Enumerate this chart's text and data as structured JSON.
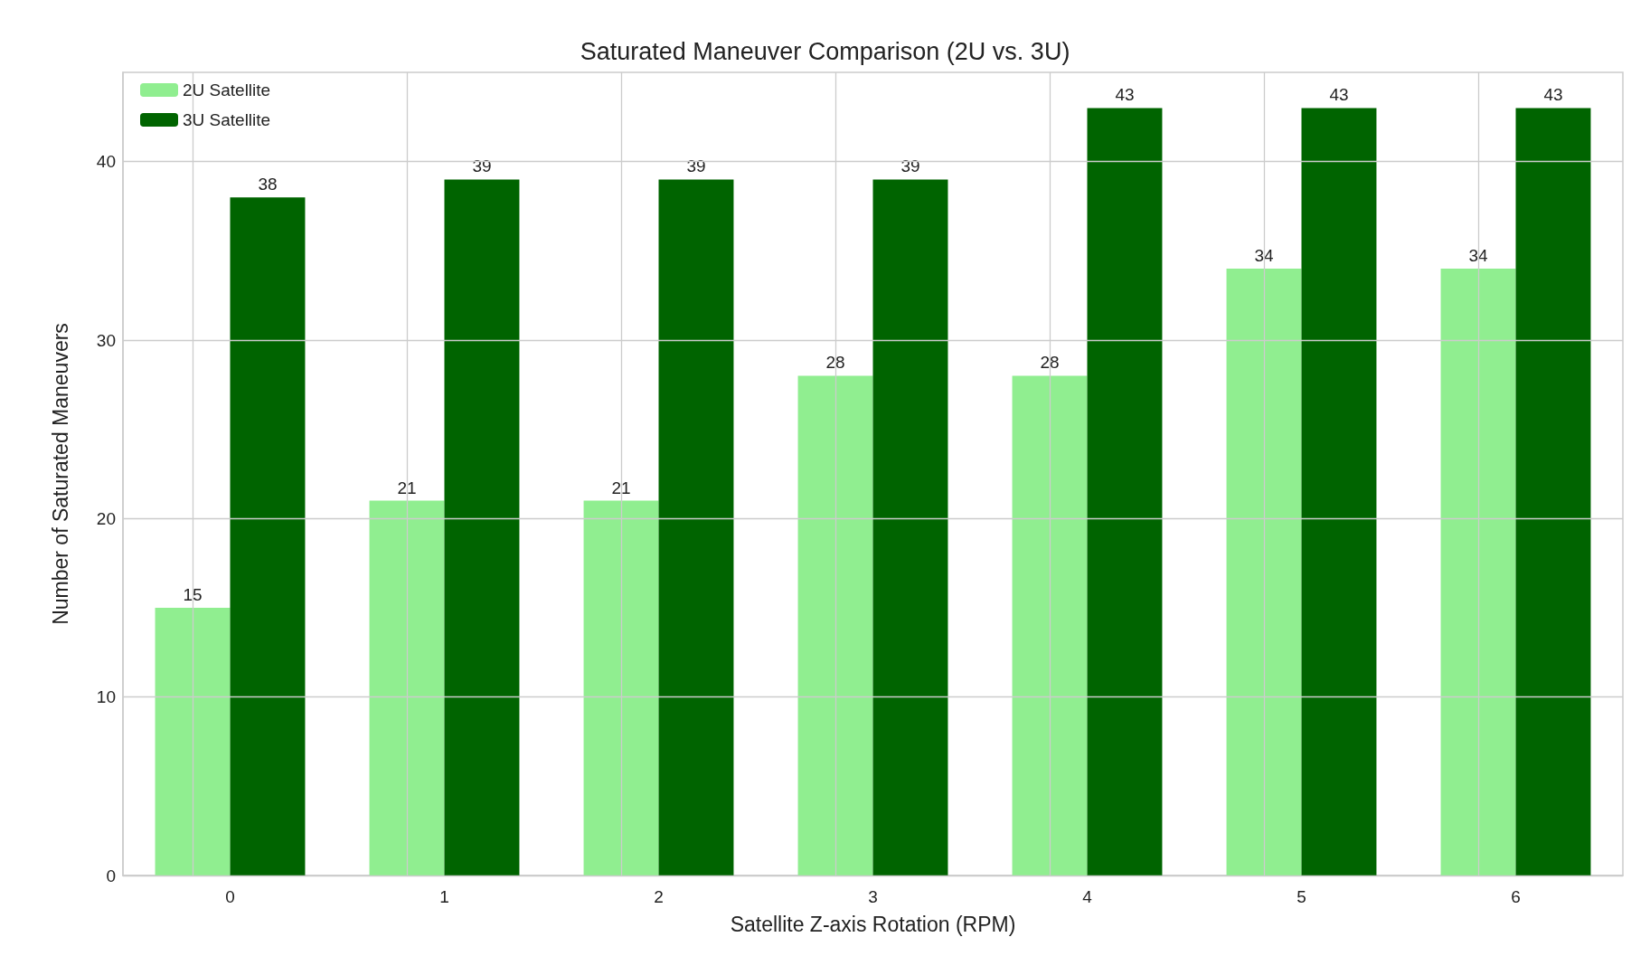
{
  "chart_data": {
    "type": "bar",
    "title": "Saturated Maneuver Comparison (2U vs. 3U)",
    "xlabel": "Satellite Z-axis Rotation (RPM)",
    "ylabel": "Number of Saturated Maneuvers",
    "categories": [
      "0",
      "1",
      "2",
      "3",
      "4",
      "5",
      "6"
    ],
    "series": [
      {
        "name": "2U Satellite",
        "color": "#90ee90",
        "values": [
          15,
          21,
          21,
          28,
          28,
          34,
          34
        ]
      },
      {
        "name": "3U Satellite",
        "color": "#006400",
        "values": [
          38,
          39,
          39,
          39,
          43,
          43,
          43
        ]
      }
    ],
    "ylim": [
      0,
      45
    ],
    "yticks": [
      0,
      10,
      20,
      30,
      40
    ],
    "grid": true,
    "legend": "top left",
    "data_labels": true
  }
}
